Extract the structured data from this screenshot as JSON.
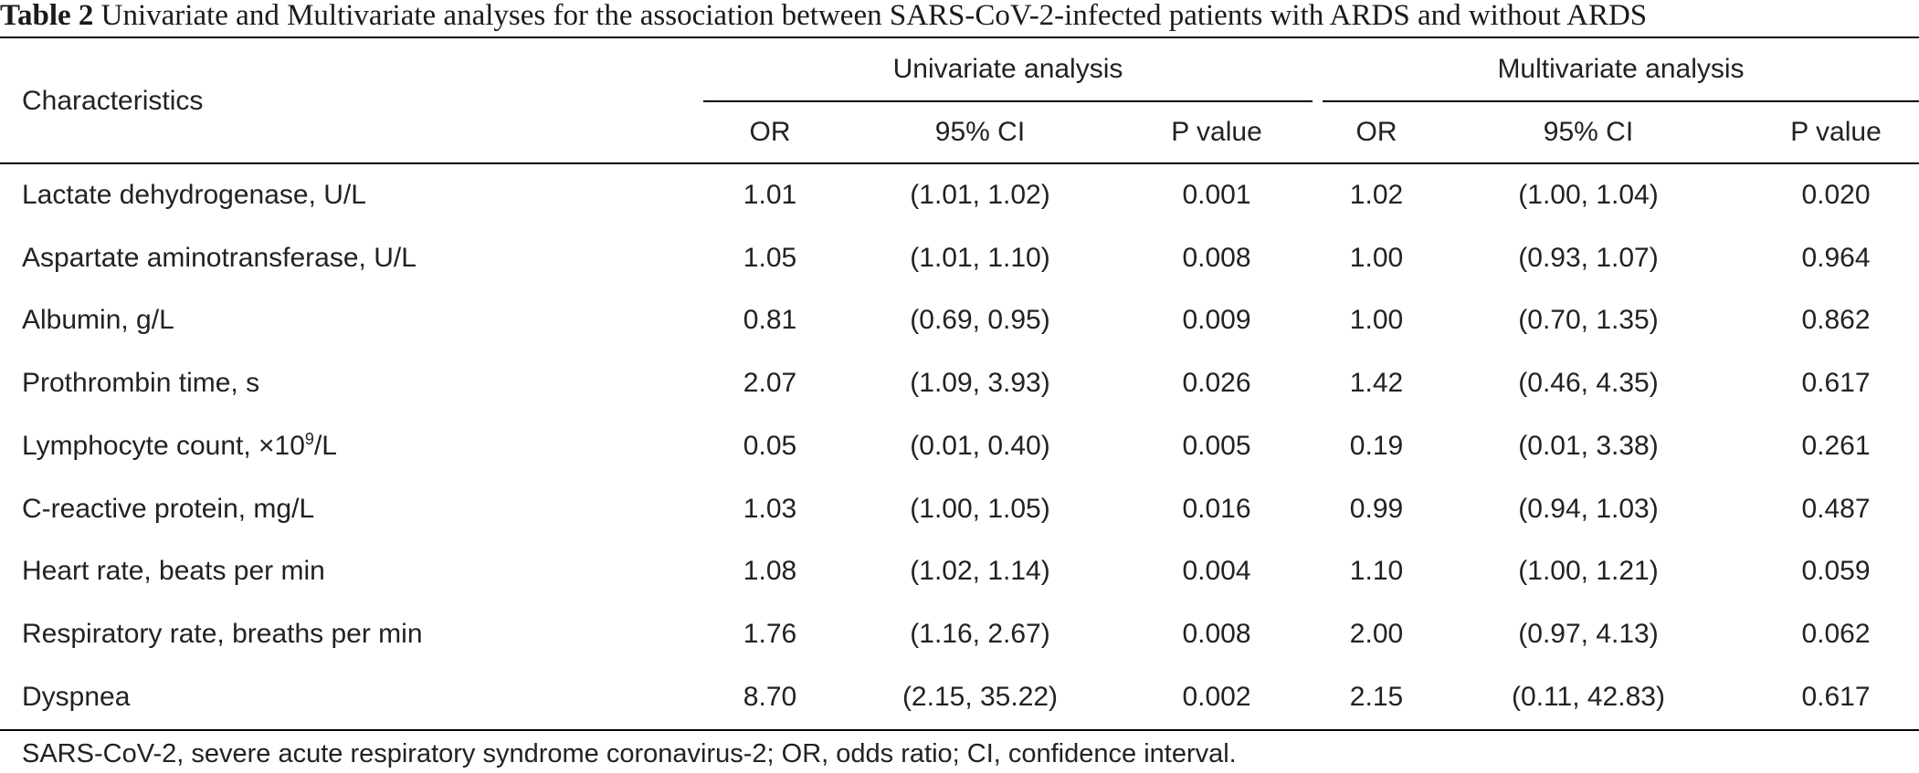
{
  "caption": {
    "label": "Table 2",
    "text": "Univariate and Multivariate analyses for the association between SARS-CoV-2-infected patients with ARDS and without ARDS"
  },
  "header": {
    "row_label": "Characteristics",
    "groups": [
      "Univariate analysis",
      "Multivariate analysis"
    ],
    "subcolumns": [
      "OR",
      "95% CI",
      "P value",
      "OR",
      "95% CI",
      "P value"
    ]
  },
  "rows": [
    {
      "label": "Lactate dehydrogenase, U/L",
      "cells": [
        "1.01",
        "(1.01, 1.02)",
        "0.001",
        "1.02",
        "(1.00, 1.04)",
        "0.020"
      ]
    },
    {
      "label": "Aspartate aminotransferase, U/L",
      "cells": [
        "1.05",
        "(1.01, 1.10)",
        "0.008",
        "1.00",
        "(0.93, 1.07)",
        "0.964"
      ]
    },
    {
      "label": "Albumin, g/L",
      "cells": [
        "0.81",
        "(0.69, 0.95)",
        "0.009",
        "1.00",
        "(0.70, 1.35)",
        "0.862"
      ]
    },
    {
      "label": "Prothrombin time, s",
      "cells": [
        "2.07",
        "(1.09, 3.93)",
        "0.026",
        "1.42",
        "(0.46, 4.35)",
        "0.617"
      ]
    },
    {
      "label": "Lymphocyte count, ×10",
      "label_sup": "9",
      "label_suffix": "/L",
      "cells": [
        "0.05",
        "(0.01, 0.40)",
        "0.005",
        "0.19",
        "(0.01, 3.38)",
        "0.261"
      ]
    },
    {
      "label": "C-reactive protein, mg/L",
      "cells": [
        "1.03",
        "(1.00, 1.05)",
        "0.016",
        "0.99",
        "(0.94, 1.03)",
        "0.487"
      ]
    },
    {
      "label": "Heart rate, beats per min",
      "cells": [
        "1.08",
        "(1.02, 1.14)",
        "0.004",
        "1.10",
        "(1.00, 1.21)",
        "0.059"
      ]
    },
    {
      "label": "Respiratory rate, breaths per min",
      "cells": [
        "1.76",
        "(1.16, 2.67)",
        "0.008",
        "2.00",
        "(0.97, 4.13)",
        "0.062"
      ]
    },
    {
      "label": "Dyspnea",
      "cells": [
        "8.70",
        "(2.15, 35.22)",
        "0.002",
        "2.15",
        "(0.11, 42.83)",
        "0.617"
      ]
    }
  ],
  "footnote": "SARS-CoV-2, severe acute respiratory syndrome coronavirus-2; OR, odds ratio; CI, confidence interval."
}
